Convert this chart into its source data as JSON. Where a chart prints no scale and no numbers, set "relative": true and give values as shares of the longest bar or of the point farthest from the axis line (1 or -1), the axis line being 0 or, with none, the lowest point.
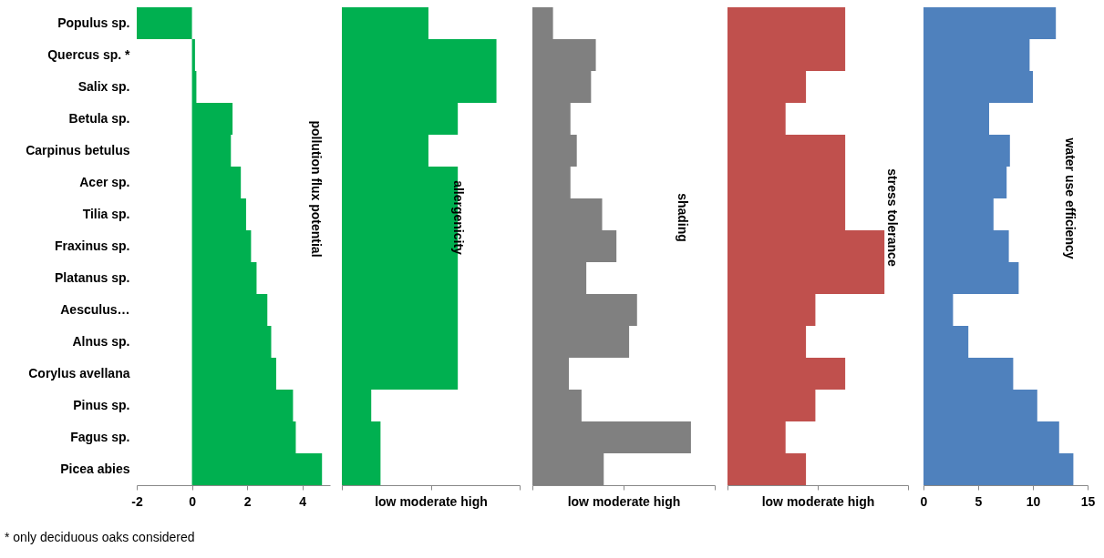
{
  "chart_data": [
    {
      "type": "bar",
      "orientation": "horizontal",
      "title": "pollution flux potential",
      "categories": [
        "Populus sp.",
        "Quercus sp. *",
        "Salix sp.",
        "Betula sp.",
        "Carpinus betulus",
        "Acer sp.",
        "Tilia sp.",
        "Fraxinus sp.",
        "Platanus sp.",
        "Aesculus…",
        "Alnus sp.",
        "Corylus avellana",
        "Pinus sp.",
        "Fagus sp.",
        "Picea abies"
      ],
      "series": [
        {
          "color": "#00b050",
          "values": [
            -2.0,
            0.11,
            0.16,
            1.47,
            1.41,
            1.77,
            1.96,
            2.14,
            2.34,
            2.73,
            2.87,
            3.05,
            3.66,
            3.76,
            4.71
          ]
        }
      ],
      "xlim": [
        -2,
        5
      ],
      "xticks": [
        -2,
        0,
        2,
        4
      ],
      "annotations": [
        "* only deciduous oaks considered"
      ]
    },
    {
      "type": "bar",
      "orientation": "horizontal",
      "title": "allergenicity",
      "xlabel": "low moderate  high",
      "relative": true,
      "tick_labels": false,
      "categories": [
        "Populus sp.",
        "Quercus sp. *",
        "Salix sp.",
        "Betula sp.",
        "Carpinus betulus",
        "Acer sp.",
        "Tilia sp.",
        "Fraxinus sp.",
        "Platanus sp.",
        "Aesculus…",
        "Alnus sp.",
        "Corylus avellana",
        "Pinus sp.",
        "Fagus sp.",
        "Picea abies"
      ],
      "series": [
        {
          "color": "#00b050",
          "values": [
            0.56,
            1,
            1,
            0.75,
            0.56,
            0.75,
            0.75,
            0.75,
            0.75,
            0.75,
            0.75,
            0.75,
            0.19,
            0.25,
            0.25
          ]
        }
      ]
    },
    {
      "type": "bar",
      "orientation": "horizontal",
      "title": "shading",
      "xlabel": "low  moderate   high",
      "relative": true,
      "tick_labels": false,
      "categories": [
        "Populus sp.",
        "Quercus sp. *",
        "Salix sp.",
        "Betula sp.",
        "Carpinus betulus",
        "Acer sp.",
        "Tilia sp.",
        "Fraxinus sp.",
        "Platanus sp.",
        "Aesculus…",
        "Alnus sp.",
        "Corylus avellana",
        "Pinus sp.",
        "Fagus sp.",
        "Picea abies"
      ],
      "series": [
        {
          "color": "#808080",
          "values": [
            0.13,
            0.4,
            0.37,
            0.24,
            0.28,
            0.24,
            0.44,
            0.53,
            0.34,
            0.66,
            0.61,
            0.23,
            0.31,
            1,
            0.45
          ]
        }
      ]
    },
    {
      "type": "bar",
      "orientation": "horizontal",
      "title": "stress tolerance",
      "xlabel": "low  moderate  high",
      "relative": true,
      "tick_labels": false,
      "categories": [
        "Populus sp.",
        "Quercus sp. *",
        "Salix sp.",
        "Betula sp.",
        "Carpinus betulus",
        "Acer sp.",
        "Tilia sp.",
        "Fraxinus sp.",
        "Platanus sp.",
        "Aesculus…",
        "Alnus sp.",
        "Corylus avellana",
        "Pinus sp.",
        "Fagus sp.",
        "Picea abies"
      ],
      "series": [
        {
          "color": "#c0504d",
          "values": [
            0.75,
            0.75,
            0.5,
            0.37,
            0.75,
            0.75,
            0.75,
            1,
            1,
            0.56,
            0.5,
            0.75,
            0.56,
            0.37,
            0.5
          ]
        }
      ]
    },
    {
      "type": "bar",
      "orientation": "horizontal",
      "title": "water use efficiency",
      "tick_labels": "x",
      "categories": [
        "Populus sp.",
        "Quercus sp. *",
        "Salix sp.",
        "Betula sp.",
        "Carpinus betulus",
        "Acer sp.",
        "Tilia sp.",
        "Fraxinus sp.",
        "Platanus sp.",
        "Aesculus…",
        "Alnus sp.",
        "Corylus avellana",
        "Pinus sp.",
        "Fagus sp.",
        "Picea abies"
      ],
      "series": [
        {
          "color": "#4f81bd",
          "values": [
            12.1,
            9.7,
            10.0,
            6.0,
            7.9,
            7.6,
            6.4,
            7.8,
            8.7,
            2.7,
            4.1,
            8.2,
            10.4,
            12.4,
            13.7
          ]
        }
      ],
      "xlim": [
        0,
        15
      ],
      "xticks": [
        0,
        5,
        10,
        15
      ]
    }
  ]
}
